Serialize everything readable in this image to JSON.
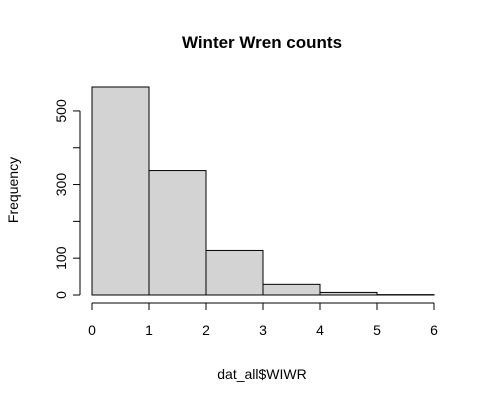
{
  "chart_data": {
    "type": "bar",
    "title": "Winter Wren counts",
    "xlabel": "dat_all$WIWR",
    "ylabel": "Frequency",
    "bins": [
      {
        "x0": 0,
        "x1": 1,
        "value": 565
      },
      {
        "x0": 1,
        "x1": 2,
        "value": 338
      },
      {
        "x0": 2,
        "x1": 3,
        "value": 121
      },
      {
        "x0": 3,
        "x1": 4,
        "value": 29
      },
      {
        "x0": 4,
        "x1": 5,
        "value": 7
      },
      {
        "x0": 5,
        "x1": 6,
        "value": 1
      }
    ],
    "xlim": [
      0,
      6
    ],
    "ylim": [
      0,
      565
    ],
    "xticks": [
      "0",
      "1",
      "2",
      "3",
      "4",
      "5",
      "6"
    ],
    "yticks": [
      "0",
      "100",
      "300",
      "500"
    ],
    "ytick_values": [
      0,
      100,
      300,
      500
    ],
    "ytick_minor": [
      200,
      400
    ],
    "grid": false,
    "colors": {
      "bar_fill": "#d3d3d3",
      "bar_stroke": "#000000",
      "background": "#ffffff"
    }
  }
}
